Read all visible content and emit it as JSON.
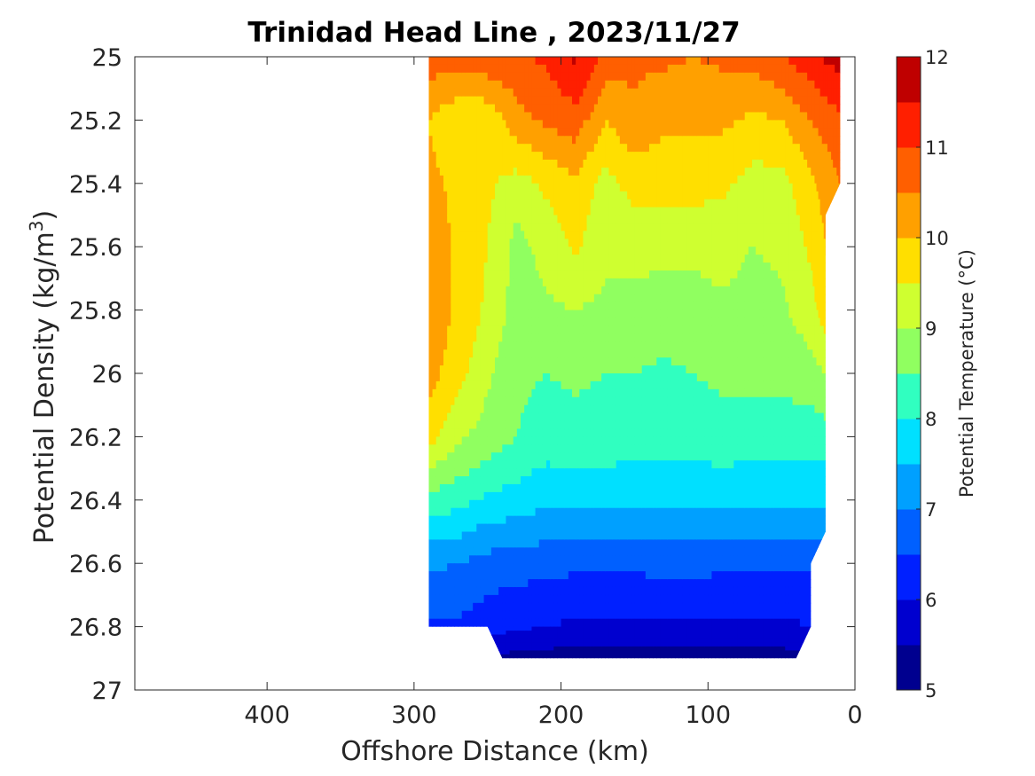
{
  "chart_data": {
    "type": "heatmap",
    "subtype": "filled-contour",
    "title": "Trinidad Head Line , 2023/11/27",
    "xlabel": "Offshore Distance (km)",
    "ylabel_main": "Potential Density (kg/m",
    "ylabel_sup": "3",
    "ylabel_tail": ")",
    "colorbar_label": "Potential Temperature (°C)",
    "xlim": [
      490,
      0
    ],
    "x_reversed": true,
    "x_ticks": [
      400,
      300,
      200,
      100,
      0
    ],
    "ylim": [
      25,
      27
    ],
    "y_reversed": true,
    "y_ticks": [
      "25",
      "25.2",
      "25.4",
      "25.6",
      "25.8",
      "26",
      "26.2",
      "26.4",
      "26.6",
      "26.8",
      "27"
    ],
    "y_tick_values": [
      25,
      25.2,
      25.4,
      25.6,
      25.8,
      26,
      26.2,
      26.4,
      26.6,
      26.8,
      27
    ],
    "colorbar_range": [
      5,
      12
    ],
    "colorbar_ticks": [
      5,
      6,
      7,
      8,
      9,
      10,
      11,
      12
    ],
    "contour_levels": [
      5,
      5.5,
      6,
      6.5,
      7,
      7.5,
      8,
      8.5,
      9,
      9.5,
      10,
      10.5,
      11,
      11.5,
      12
    ],
    "level_colors": [
      "#00008f",
      "#0000cf",
      "#0020ff",
      "#0060ff",
      "#00a0ff",
      "#00e0ff",
      "#30ffc0",
      "#90ff60",
      "#cfff30",
      "#ffdf00",
      "#ffa000",
      "#ff5f00",
      "#ff1f00",
      "#bf0000"
    ],
    "x_dist": [
      290,
      270,
      250,
      230,
      210,
      190,
      170,
      150,
      130,
      110,
      90,
      70,
      50,
      30,
      20,
      10
    ],
    "y_dens": [
      25.0,
      25.2,
      25.4,
      25.6,
      25.8,
      26.0,
      26.2,
      26.4,
      26.6,
      26.8,
      26.9
    ],
    "temperature": [
      [
        10.8,
        10.7,
        10.9,
        10.9,
        11.1,
        11.6,
        10.8,
        10.6,
        10.6,
        10.5,
        10.6,
        10.7,
        11.0,
        11.3,
        11.6,
        11.7
      ],
      [
        10.0,
        9.6,
        9.6,
        10.3,
        10.6,
        10.8,
        10.0,
        10.4,
        10.1,
        10.1,
        10.1,
        9.9,
        10.0,
        10.5,
        10.7,
        10.9
      ],
      [
        10.1,
        9.9,
        9.6,
        9.3,
        9.6,
        9.9,
        9.3,
        9.7,
        9.7,
        9.7,
        9.6,
        9.3,
        9.3,
        9.9,
        10.2,
        10.5
      ],
      [
        10.3,
        9.9,
        9.5,
        8.8,
        9.2,
        9.6,
        9.1,
        9.2,
        9.1,
        9.1,
        9.2,
        9.0,
        9.1,
        9.6,
        10.0,
        10.3
      ],
      [
        10.4,
        9.9,
        9.4,
        8.8,
        8.9,
        9.0,
        8.9,
        8.8,
        8.8,
        8.8,
        8.9,
        8.8,
        8.9,
        9.3,
        9.8,
        10.0
      ],
      [
        10.2,
        9.7,
        9.1,
        8.6,
        8.5,
        8.6,
        8.5,
        8.5,
        8.4,
        8.5,
        8.6,
        8.7,
        8.7,
        8.8,
        9.0,
        9.2
      ],
      [
        9.7,
        9.1,
        8.8,
        8.5,
        8.3,
        8.3,
        8.3,
        8.2,
        8.2,
        8.2,
        8.3,
        8.2,
        8.2,
        8.2,
        8.3,
        8.4
      ],
      [
        8.3,
        8.2,
        7.9,
        7.8,
        7.6,
        7.7,
        7.7,
        7.6,
        7.6,
        7.6,
        7.7,
        7.6,
        7.7,
        7.7,
        7.6,
        7.6
      ],
      [
        7.1,
        7.0,
        6.8,
        6.7,
        6.7,
        6.6,
        6.6,
        6.6,
        6.7,
        6.7,
        6.6,
        6.6,
        6.6,
        6.6,
        6.6,
        6.6
      ],
      [
        6.4,
        6.4,
        6.2,
        6.1,
        6.0,
        5.9,
        5.9,
        5.9,
        5.9,
        5.9,
        5.9,
        5.9,
        5.9,
        6.0,
        6.0,
        6.0
      ],
      [
        5.7,
        5.6,
        5.5,
        5.3,
        5.3,
        5.2,
        5.2,
        5.2,
        5.2,
        5.2,
        5.2,
        5.2,
        5.3,
        5.4,
        5.5,
        5.5
      ]
    ],
    "data_mask_outline_xy": [
      [
        290,
        25.0
      ],
      [
        10,
        25.0
      ],
      [
        10,
        25.4
      ],
      [
        20,
        25.5
      ],
      [
        20,
        26.5
      ],
      [
        30,
        26.6
      ],
      [
        30,
        26.8
      ],
      [
        40,
        26.9
      ],
      [
        240,
        26.9
      ],
      [
        250,
        26.8
      ],
      [
        290,
        26.8
      ]
    ]
  }
}
